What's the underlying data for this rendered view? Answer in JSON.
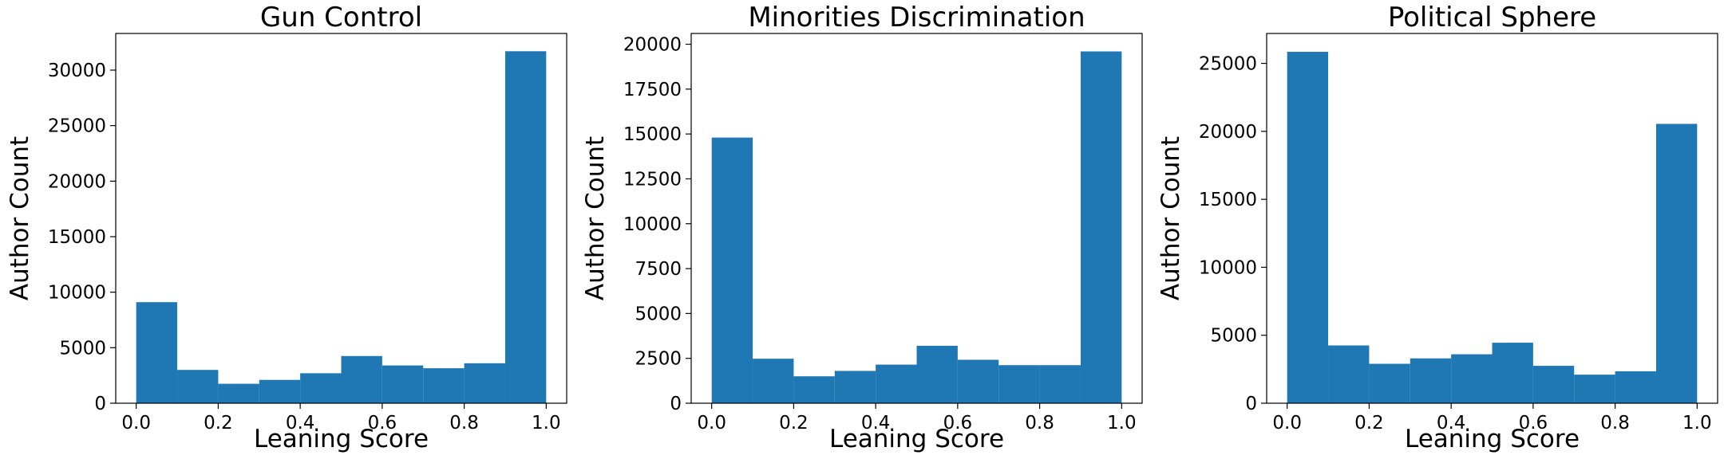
{
  "bar_color": "#1f77b4",
  "chart_data": [
    {
      "type": "bar",
      "title": "Gun Control",
      "xlabel": "Leaning Score",
      "ylabel": "Author Count",
      "bin_edges": [
        0.0,
        0.1,
        0.2,
        0.3,
        0.4,
        0.5,
        0.6,
        0.7,
        0.8,
        0.9,
        1.0
      ],
      "values": [
        9100,
        3000,
        1750,
        2100,
        2700,
        4250,
        3400,
        3150,
        3600,
        31700
      ],
      "xlim": [
        -0.05,
        1.05
      ],
      "ylim": [
        0,
        33300
      ],
      "xticks": [
        0.0,
        0.2,
        0.4,
        0.6,
        0.8,
        1.0
      ],
      "xtick_labels": [
        "0.0",
        "0.2",
        "0.4",
        "0.6",
        "0.8",
        "1.0"
      ],
      "yticks": [
        0,
        5000,
        10000,
        15000,
        20000,
        25000,
        30000
      ],
      "ytick_labels": [
        "0",
        "5000",
        "10000",
        "15000",
        "20000",
        "25000",
        "30000"
      ],
      "grid": false,
      "color": "#1f77b4"
    },
    {
      "type": "bar",
      "title": "Minorities Discrimination",
      "xlabel": "Leaning Score",
      "ylabel": "Author Count",
      "bin_edges": [
        0.0,
        0.1,
        0.2,
        0.3,
        0.4,
        0.5,
        0.6,
        0.7,
        0.8,
        0.9,
        1.0
      ],
      "values": [
        14800,
        2480,
        1500,
        1800,
        2150,
        3200,
        2420,
        2120,
        2120,
        19600
      ],
      "xlim": [
        -0.05,
        1.05
      ],
      "ylim": [
        0,
        20600
      ],
      "xticks": [
        0.0,
        0.2,
        0.4,
        0.6,
        0.8,
        1.0
      ],
      "xtick_labels": [
        "0.0",
        "0.2",
        "0.4",
        "0.6",
        "0.8",
        "1.0"
      ],
      "yticks": [
        0,
        2500,
        5000,
        7500,
        10000,
        12500,
        15000,
        17500,
        20000
      ],
      "ytick_labels": [
        "0",
        "2500",
        "5000",
        "7500",
        "10000",
        "12500",
        "15000",
        "17500",
        "20000"
      ],
      "grid": false,
      "color": "#1f77b4"
    },
    {
      "type": "bar",
      "title": "Political Sphere",
      "xlabel": "Leaning Score",
      "ylabel": "Author Count",
      "bin_edges": [
        0.0,
        0.1,
        0.2,
        0.3,
        0.4,
        0.5,
        0.6,
        0.7,
        0.8,
        0.9,
        1.0
      ],
      "values": [
        25850,
        4250,
        2900,
        3300,
        3600,
        4450,
        2750,
        2100,
        2350,
        20550
      ],
      "xlim": [
        -0.05,
        1.05
      ],
      "ylim": [
        0,
        27200
      ],
      "xticks": [
        0.0,
        0.2,
        0.4,
        0.6,
        0.8,
        1.0
      ],
      "xtick_labels": [
        "0.0",
        "0.2",
        "0.4",
        "0.6",
        "0.8",
        "1.0"
      ],
      "yticks": [
        0,
        5000,
        10000,
        15000,
        20000,
        25000
      ],
      "ytick_labels": [
        "0",
        "5000",
        "10000",
        "15000",
        "20000",
        "25000"
      ],
      "grid": false,
      "color": "#1f77b4"
    }
  ]
}
